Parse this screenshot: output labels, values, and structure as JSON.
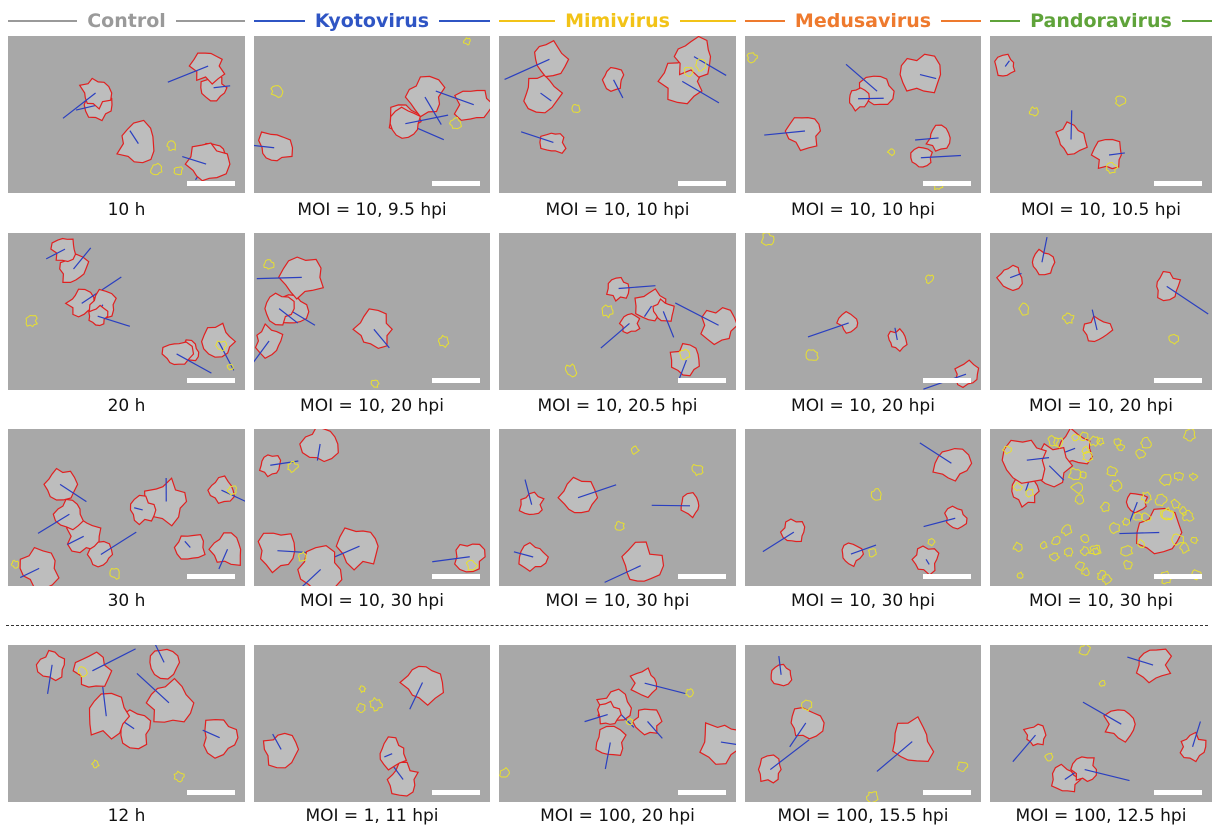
{
  "headers": [
    {
      "label": "Control",
      "color": "#9a9a9a"
    },
    {
      "label": "Kyotovirus",
      "color": "#2f55c4"
    },
    {
      "label": "Mimivirus",
      "color": "#f2c318"
    },
    {
      "label": "Medusavirus",
      "color": "#ee7a2e"
    },
    {
      "label": "Pandoravirus",
      "color": "#5fa33a"
    }
  ],
  "rows": [
    [
      "10 h",
      "MOI = 10, 9.5 hpi",
      "MOI = 10, 10 hpi",
      "MOI = 10, 10 hpi",
      "MOI = 10, 10.5 hpi"
    ],
    [
      "20 h",
      "MOI = 10, 20 hpi",
      "MOI = 10, 20.5 hpi",
      "MOI = 10, 20 hpi",
      "MOI = 10, 20 hpi"
    ],
    [
      "30 h",
      "MOI = 10, 30 hpi",
      "MOI = 10, 30 hpi",
      "MOI = 10, 30 hpi",
      "MOI = 10, 30 hpi"
    ],
    [
      "12 h",
      "MOI = 1, 11 hpi",
      "MOI = 100, 20 hpi",
      "MOI = 100, 15.5 hpi",
      "MOI = 100, 12.5 hpi"
    ]
  ]
}
